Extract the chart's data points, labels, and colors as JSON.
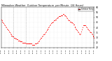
{
  "title": "Milwaukee Weather  Outdoor Temperature  per Minute  (24 Hours)",
  "line_color": "#ff0000",
  "bg_color": "#ffffff",
  "grid_color": "#aaaaaa",
  "vline_positions": [
    19,
    38
  ],
  "y_min": 20,
  "y_max": 60,
  "y_ticks": [
    20,
    25,
    30,
    35,
    40,
    45,
    50,
    55,
    60
  ],
  "legend_label": "Outdoor Temp",
  "legend_color": "#ff0000",
  "x_ticks_labels": [
    "01:35",
    "02:35",
    "03:35",
    "04:35",
    "05:35",
    "06:35",
    "07:35",
    "08:35",
    "09:35",
    "10:35",
    "11:35",
    "12:35",
    "13:35",
    "14:35",
    "15:35",
    "16:35",
    "17:35",
    "18:35",
    "19:35",
    "20:35",
    "21:35",
    "22:35",
    "23:35",
    "24:35"
  ],
  "data_x": [
    0,
    1,
    2,
    3,
    4,
    5,
    6,
    7,
    8,
    9,
    10,
    11,
    12,
    13,
    14,
    15,
    16,
    17,
    18,
    19,
    20,
    21,
    22,
    23,
    24,
    25,
    26,
    27,
    28,
    29,
    30,
    31,
    32,
    33,
    34,
    35,
    36,
    37,
    38,
    39,
    40,
    41,
    42,
    43,
    44,
    45,
    46,
    47,
    48,
    49,
    50,
    51,
    52,
    53,
    54,
    55,
    56,
    57,
    58,
    59,
    60,
    61,
    62,
    63,
    64,
    65,
    66,
    67,
    68,
    69,
    70,
    71,
    72,
    73,
    74,
    75,
    76,
    77,
    78,
    79,
    80,
    81,
    82,
    83,
    84,
    85,
    86,
    87,
    88,
    89,
    90,
    91,
    92,
    93,
    94,
    95,
    96,
    97,
    98,
    99,
    100,
    101,
    102,
    103,
    104,
    105,
    106,
    107,
    108,
    109,
    110,
    111,
    112,
    113,
    114,
    115,
    116,
    117,
    118,
    119,
    120,
    121,
    122,
    123,
    124,
    125,
    126,
    127,
    128,
    129,
    130,
    131,
    132,
    133,
    134,
    135,
    136,
    137,
    138,
    139,
    140,
    141,
    142,
    143
  ],
  "data_y": [
    48,
    47,
    46,
    45,
    44,
    43,
    42,
    41,
    40,
    39,
    38,
    37,
    36,
    35,
    34,
    33,
    32,
    32,
    31,
    31,
    30,
    30,
    29,
    29,
    28,
    28,
    27,
    27,
    27,
    26,
    26,
    26,
    26,
    25,
    25,
    25,
    25,
    25,
    24,
    24,
    24,
    24,
    24,
    24,
    24,
    24,
    24,
    24,
    23,
    23,
    23,
    23,
    24,
    24,
    24,
    25,
    25,
    26,
    26,
    27,
    28,
    30,
    30,
    31,
    32,
    33,
    33,
    34,
    35,
    36,
    37,
    38,
    39,
    40,
    41,
    42,
    43,
    44,
    45,
    45,
    46,
    47,
    47,
    48,
    48,
    49,
    49,
    50,
    50,
    51,
    51,
    51,
    52,
    52,
    52,
    53,
    53,
    52,
    52,
    51,
    51,
    50,
    49,
    48,
    47,
    47,
    46,
    46,
    45,
    45,
    44,
    43,
    43,
    41,
    40,
    39,
    38,
    37,
    36,
    35,
    34,
    33,
    34,
    36,
    38,
    40,
    42,
    42,
    42,
    42,
    42,
    41,
    40,
    39,
    38,
    37,
    36,
    35,
    35,
    34,
    33,
    32,
    31,
    30
  ]
}
